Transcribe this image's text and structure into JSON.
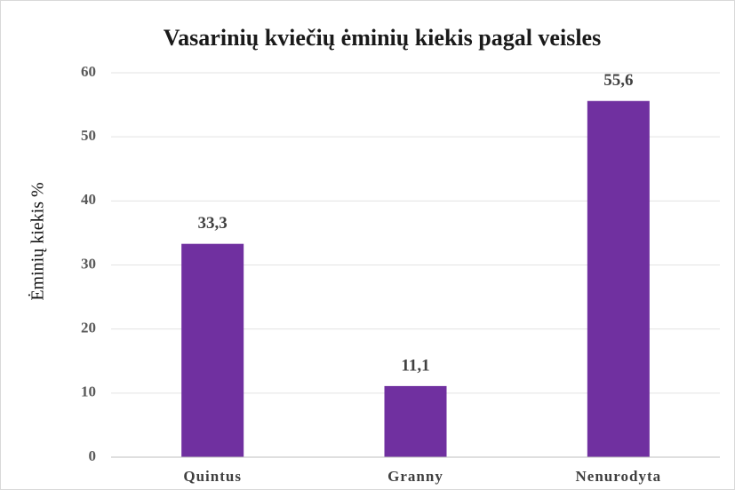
{
  "chart_data": {
    "type": "bar",
    "title": "Vasarinių kviečių ėminių kiekis pagal veisles",
    "y_label": "Ėminių kiekis %",
    "categories": [
      "Quintus",
      "Granny",
      "Nenurodyta"
    ],
    "values": [
      33.3,
      11.1,
      55.6
    ],
    "value_labels": [
      "33,3",
      "11,1",
      "55,6"
    ],
    "color": "#7030a0",
    "ylim": [
      0,
      60
    ],
    "yticks": [
      0,
      10,
      20,
      30,
      40,
      50,
      60
    ],
    "grid": true
  }
}
